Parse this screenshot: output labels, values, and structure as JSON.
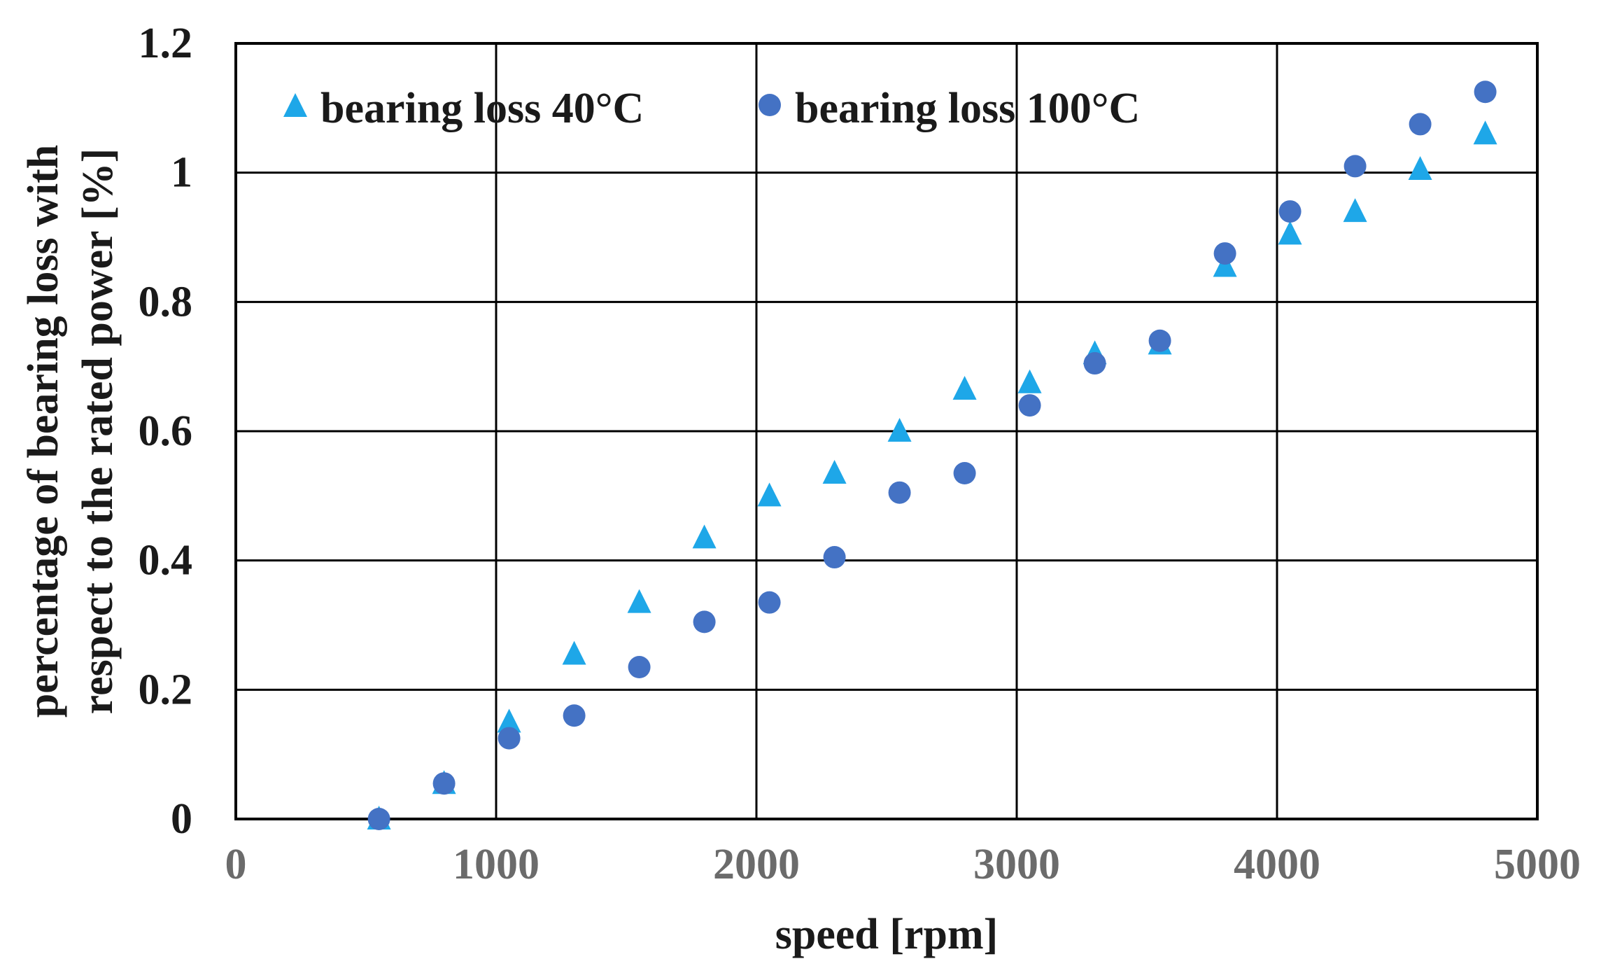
{
  "chart_data": {
    "type": "scatter",
    "title": "",
    "xlabel": "speed [rpm]",
    "ylabel_lines": [
      "percentage of bearing loss with",
      "respect to the rated power [%]"
    ],
    "xlim": [
      0,
      5000
    ],
    "ylim": [
      0,
      1.2
    ],
    "x_ticks": [
      "0",
      "1000",
      "2000",
      "3000",
      "4000",
      "5000"
    ],
    "y_ticks": [
      "0",
      "0.2",
      "0.4",
      "0.6",
      "0.8",
      "1",
      "1.2"
    ],
    "grid": true,
    "legend_position": "top, inside plot",
    "series": [
      {
        "name": "bearing loss 40°C",
        "marker": "triangle",
        "color": "#1ea7e8",
        "x": [
          550,
          800,
          1050,
          1300,
          1550,
          1800,
          2050,
          2300,
          2550,
          2800,
          3050,
          3300,
          3550,
          3800,
          4050,
          4300,
          4550,
          4800
        ],
        "y": [
          0.0,
          0.055,
          0.15,
          0.255,
          0.335,
          0.435,
          0.5,
          0.535,
          0.6,
          0.665,
          0.675,
          0.72,
          0.735,
          0.855,
          0.905,
          0.94,
          1.005,
          1.06
        ]
      },
      {
        "name": "bearing loss 100°C",
        "marker": "circle",
        "color": "#4472c4",
        "x": [
          550,
          800,
          1050,
          1300,
          1550,
          1800,
          2050,
          2300,
          2550,
          2800,
          3050,
          3300,
          3550,
          3800,
          4050,
          4300,
          4550,
          4800
        ],
        "y": [
          0.0,
          0.055,
          0.125,
          0.16,
          0.235,
          0.305,
          0.335,
          0.405,
          0.505,
          0.535,
          0.64,
          0.705,
          0.74,
          0.875,
          0.94,
          1.01,
          1.075,
          1.125
        ]
      }
    ]
  }
}
